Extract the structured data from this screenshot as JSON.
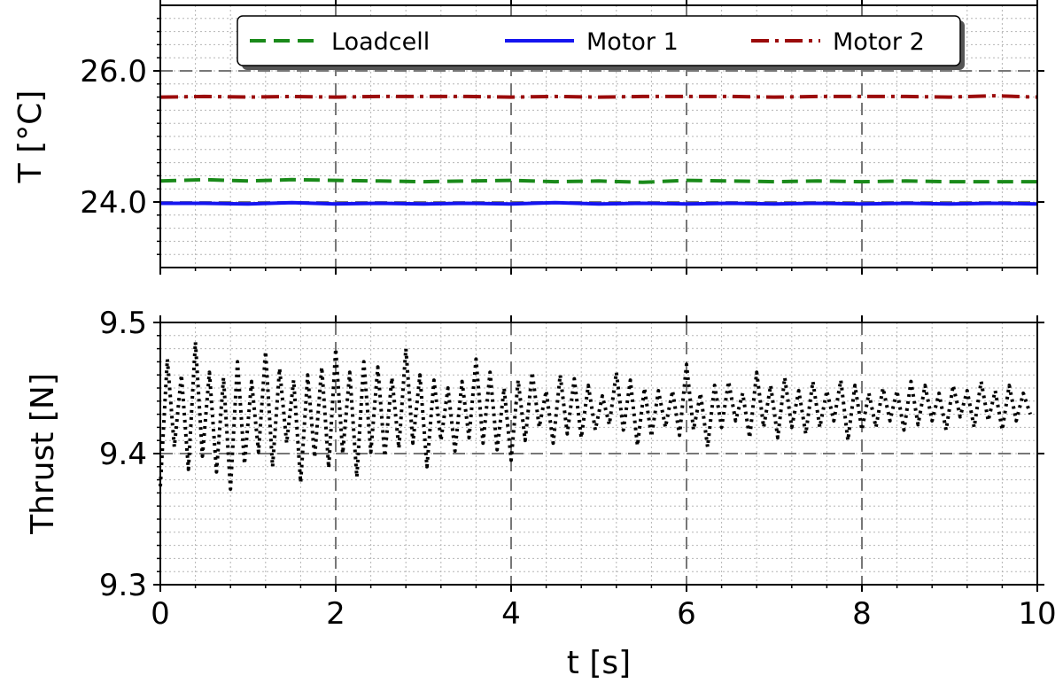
{
  "chart_data": [
    {
      "type": "line",
      "title": "",
      "xlabel": "",
      "ylabel": "T [°C]",
      "xlim": [
        0,
        10
      ],
      "ylim": [
        23,
        27
      ],
      "y_ticks_major": [
        "24.0",
        "26.0"
      ],
      "y_tick_values": [
        24.0,
        26.0
      ],
      "grid": "major dashed, minor dotted",
      "legend": {
        "placement": "top-center",
        "entries": [
          "Loadcell",
          "Motor 1",
          "Motor 2"
        ]
      },
      "series": [
        {
          "name": "Loadcell",
          "style": "dashed",
          "color": "#1a8a1a",
          "x": [
            0,
            0.5,
            1,
            1.5,
            2,
            2.5,
            3,
            3.5,
            4,
            4.5,
            5,
            5.5,
            6,
            6.5,
            7,
            7.5,
            8,
            8.5,
            9,
            9.5,
            10
          ],
          "values": [
            24.32,
            24.34,
            24.32,
            24.34,
            24.33,
            24.32,
            24.31,
            24.32,
            24.33,
            24.31,
            24.32,
            24.3,
            24.33,
            24.32,
            24.31,
            24.32,
            24.31,
            24.32,
            24.31,
            24.31,
            24.31
          ]
        },
        {
          "name": "Motor 1",
          "style": "solid",
          "color": "#1515f0",
          "x": [
            0,
            0.5,
            1,
            1.5,
            2,
            2.5,
            3,
            3.5,
            4,
            4.5,
            5,
            5.5,
            6,
            6.5,
            7,
            7.5,
            8,
            8.5,
            9,
            9.5,
            10
          ],
          "values": [
            23.98,
            23.98,
            23.97,
            23.99,
            23.97,
            23.98,
            23.97,
            23.98,
            23.97,
            23.99,
            23.97,
            23.98,
            23.97,
            23.98,
            23.97,
            23.98,
            23.97,
            23.98,
            23.97,
            23.98,
            23.97
          ]
        },
        {
          "name": "Motor 2",
          "style": "dashdot",
          "color": "#9b0b0b",
          "x": [
            0,
            0.5,
            1,
            1.5,
            2,
            2.5,
            3,
            3.5,
            4,
            4.5,
            5,
            5.5,
            6,
            6.5,
            7,
            7.5,
            8,
            8.5,
            9,
            9.5,
            10
          ],
          "values": [
            25.6,
            25.61,
            25.6,
            25.61,
            25.6,
            25.61,
            25.61,
            25.61,
            25.6,
            25.61,
            25.6,
            25.61,
            25.61,
            25.61,
            25.6,
            25.61,
            25.61,
            25.61,
            25.6,
            25.62,
            25.6
          ]
        }
      ]
    },
    {
      "type": "line",
      "title": "",
      "xlabel": "t [s]",
      "ylabel": "Thrust [N]",
      "xlim": [
        0,
        10
      ],
      "ylim": [
        9.3,
        9.5
      ],
      "x_ticks_major": [
        "0",
        "2",
        "4",
        "6",
        "8",
        "10"
      ],
      "x_tick_values": [
        0,
        2,
        4,
        6,
        8,
        10
      ],
      "y_ticks_major": [
        "9.3",
        "9.4",
        "9.5"
      ],
      "y_tick_values": [
        9.3,
        9.4,
        9.5
      ],
      "grid": "major dashed, minor dotted",
      "series": [
        {
          "name": "",
          "style": "dotted",
          "color": "#000000",
          "x": [
            0.0,
            0.08,
            0.16,
            0.24,
            0.32,
            0.4,
            0.48,
            0.56,
            0.64,
            0.72,
            0.8,
            0.88,
            0.96,
            1.04,
            1.12,
            1.2,
            1.28,
            1.36,
            1.44,
            1.52,
            1.6,
            1.68,
            1.76,
            1.84,
            1.92,
            2.0,
            2.08,
            2.16,
            2.24,
            2.32,
            2.4,
            2.48,
            2.56,
            2.64,
            2.72,
            2.8,
            2.88,
            2.96,
            3.04,
            3.12,
            3.2,
            3.28,
            3.36,
            3.44,
            3.52,
            3.6,
            3.68,
            3.76,
            3.84,
            3.92,
            4.0,
            4.08,
            4.16,
            4.24,
            4.32,
            4.4,
            4.48,
            4.56,
            4.64,
            4.72,
            4.8,
            4.88,
            4.96,
            5.04,
            5.12,
            5.2,
            5.28,
            5.36,
            5.44,
            5.52,
            5.6,
            5.68,
            5.76,
            5.84,
            5.92,
            6.0,
            6.08,
            6.16,
            6.24,
            6.32,
            6.4,
            6.48,
            6.56,
            6.64,
            6.72,
            6.8,
            6.88,
            6.96,
            7.04,
            7.12,
            7.2,
            7.28,
            7.36,
            7.44,
            7.52,
            7.6,
            7.68,
            7.76,
            7.84,
            7.92,
            8.0,
            8.08,
            8.16,
            8.24,
            8.32,
            8.4,
            8.48,
            8.56,
            8.64,
            8.72,
            8.8,
            8.88,
            8.96,
            9.04,
            9.12,
            9.2,
            9.28,
            9.36,
            9.44,
            9.52,
            9.6,
            9.68,
            9.76,
            9.84,
            9.92
          ],
          "values": [
            9.375,
            9.472,
            9.405,
            9.46,
            9.388,
            9.485,
            9.398,
            9.462,
            9.386,
            9.458,
            9.373,
            9.47,
            9.392,
            9.455,
            9.401,
            9.478,
            9.39,
            9.465,
            9.408,
            9.456,
            9.378,
            9.46,
            9.397,
            9.466,
            9.389,
            9.48,
            9.4,
            9.462,
            9.382,
            9.47,
            9.401,
            9.466,
            9.398,
            9.458,
            9.404,
            9.48,
            9.408,
            9.46,
            9.39,
            9.456,
            9.41,
            9.45,
            9.402,
            9.455,
            9.412,
            9.472,
            9.408,
            9.462,
            9.403,
            9.45,
            9.395,
            9.456,
            9.41,
            9.462,
            9.42,
            9.448,
            9.408,
            9.46,
            9.415,
            9.457,
            9.412,
            9.452,
            9.418,
            9.444,
            9.422,
            9.462,
            9.418,
            9.456,
            9.406,
            9.45,
            9.413,
            9.448,
            9.42,
            9.448,
            9.414,
            9.468,
            9.418,
            9.446,
            9.405,
            9.452,
            9.42,
            9.455,
            9.425,
            9.446,
            9.412,
            9.462,
            9.42,
            9.452,
            9.412,
            9.458,
            9.42,
            9.448,
            9.415,
            9.455,
            9.42,
            9.448,
            9.425,
            9.456,
            9.41,
            9.452,
            9.418,
            9.446,
            9.42,
            9.45,
            9.425,
            9.448,
            9.418,
            9.455,
            9.422,
            9.452,
            9.425,
            9.446,
            9.418,
            9.452,
            9.428,
            9.448,
            9.42,
            9.455,
            9.425,
            9.448,
            9.418,
            9.452,
            9.425,
            9.446,
            9.43
          ]
        }
      ]
    }
  ]
}
